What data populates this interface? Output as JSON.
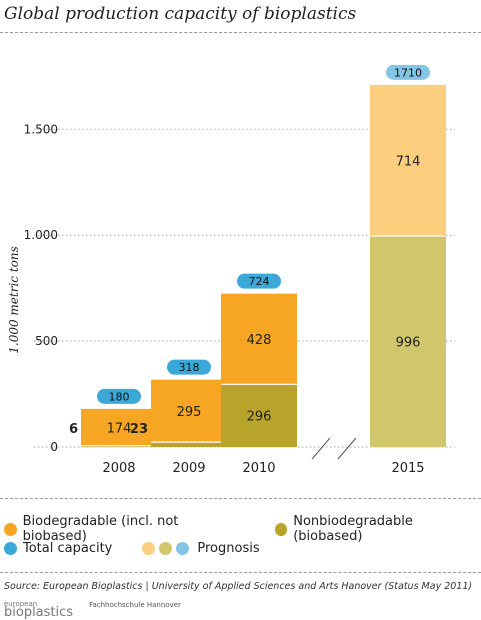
{
  "title": "Global production capacity of bioplastics",
  "legend": {
    "biodegradable": "Biodegradable (incl. not biobased)",
    "nonbiodegradable": "Nonbiodegradable (biobased)",
    "total": "Total capacity",
    "prognosis": "Prognosis"
  },
  "source": "Source: European Bioplastics | University of Applied Sciences and Arts Hanover (Status May 2011)",
  "logos": {
    "european": "european",
    "bioplastics": "bioplastics",
    "fh": "Fachhochschule Hannover"
  },
  "colors": {
    "biodegradable": "#f6a623",
    "nonbiodegradable": "#b9a42b",
    "total": "#3ba8d8",
    "prog_bio": "#fbcf7d",
    "prog_nonbio": "#d2c66d",
    "prog_total": "#84c5e6"
  },
  "chart_data": {
    "type": "bar",
    "stacked": true,
    "ylabel": "1.000 metric tons",
    "ylim": [
      0,
      1750
    ],
    "yticks": [
      0,
      500,
      1000,
      1500
    ],
    "ytick_labels": [
      "0",
      "500",
      "1.000",
      "1.500"
    ],
    "categories": [
      "2008",
      "2009",
      "2010",
      "2015"
    ],
    "series": [
      {
        "name": "Nonbiodegradable (biobased)",
        "values": [
          6,
          23,
          296,
          996
        ],
        "value_labels": [
          "6",
          "23",
          "296",
          "996"
        ]
      },
      {
        "name": "Biodegradable (incl. not biobased)",
        "values": [
          174,
          295,
          428,
          714
        ],
        "value_labels": [
          "174",
          "295",
          "428",
          "714"
        ]
      }
    ],
    "totals": [
      180,
      318,
      724,
      1710
    ],
    "total_labels": [
      "180",
      "318",
      "724",
      "1710"
    ],
    "prognosis_categories": [
      "2015"
    ],
    "axis_break": true
  }
}
